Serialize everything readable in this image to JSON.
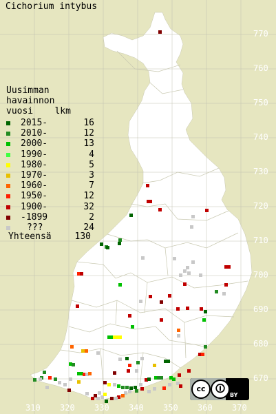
{
  "title": "Cichorium intybus",
  "legend": {
    "heading": [
      "Uusimman",
      "havainnon"
    ],
    "col_year": "vuosi",
    "col_count": "lkm",
    "rows": [
      {
        "label": "2015-",
        "count": "16",
        "color": "#006400"
      },
      {
        "label": "2010-",
        "count": "12",
        "color": "#228b22"
      },
      {
        "label": "2000-",
        "count": "13",
        "color": "#00c000"
      },
      {
        "label": "1990-",
        "count": "4",
        "color": "#40ff40"
      },
      {
        "label": "1980-",
        "count": "5",
        "color": "#ffff00"
      },
      {
        "label": "1970-",
        "count": "3",
        "color": "#e8c000"
      },
      {
        "label": "1960-",
        "count": "7",
        "color": "#ff6400"
      },
      {
        "label": "1950-",
        "count": "12",
        "color": "#ff2000"
      },
      {
        "label": "1900-",
        "count": "32",
        "color": "#c00000"
      },
      {
        "label": "-1899",
        "count": "2",
        "color": "#800000"
      },
      {
        "label": "???",
        "count": "24",
        "color": "#c8c8c8"
      }
    ],
    "total_label": "Yhteensä",
    "total_count": "130"
  },
  "grid_y_labels": [
    "770",
    "760",
    "750",
    "740",
    "730",
    "720",
    "710",
    "700",
    "690",
    "680",
    "670"
  ],
  "grid_x_labels": [
    "310",
    "320",
    "330",
    "340",
    "350",
    "360",
    "370"
  ],
  "license": {
    "cc": "cc",
    "attribution": "BY",
    "icon": "creative-commons-by-icon"
  }
}
